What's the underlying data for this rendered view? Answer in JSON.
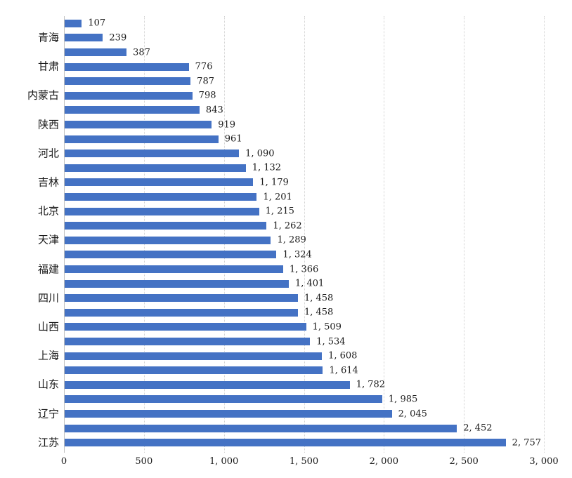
{
  "chart_data": {
    "type": "bar",
    "orientation": "horizontal",
    "title": "",
    "xlabel": "",
    "ylabel": "",
    "legend": null,
    "bar_color": "#4472C4",
    "gridline_color": "#d2d2d2",
    "axis_line_color": "#bfbfbf",
    "text_color": "#1a1a1a",
    "x_axis": {
      "min": 0,
      "max": 3000,
      "tick_interval": 500,
      "tick_labels": [
        "0",
        "500",
        "1,000",
        "1,500",
        "2,000",
        "2,500",
        "3,000"
      ],
      "grid": "dotted-vertical"
    },
    "category_label_note": "axis labels shown only on every second bar",
    "bars": [
      {
        "category": "",
        "value": 107
      },
      {
        "category": "青海",
        "value": 239
      },
      {
        "category": "",
        "value": 387
      },
      {
        "category": "甘肃",
        "value": 776
      },
      {
        "category": "",
        "value": 787
      },
      {
        "category": "内蒙古",
        "value": 798
      },
      {
        "category": "",
        "value": 843
      },
      {
        "category": "陕西",
        "value": 919
      },
      {
        "category": "",
        "value": 961
      },
      {
        "category": "河北",
        "value": 1090
      },
      {
        "category": "",
        "value": 1132
      },
      {
        "category": "吉林",
        "value": 1179
      },
      {
        "category": "",
        "value": 1201
      },
      {
        "category": "北京",
        "value": 1215
      },
      {
        "category": "",
        "value": 1262
      },
      {
        "category": "天津",
        "value": 1289
      },
      {
        "category": "",
        "value": 1324
      },
      {
        "category": "福建",
        "value": 1366
      },
      {
        "category": "",
        "value": 1401
      },
      {
        "category": "四川",
        "value": 1458
      },
      {
        "category": "",
        "value": 1458
      },
      {
        "category": "山西",
        "value": 1509
      },
      {
        "category": "",
        "value": 1534
      },
      {
        "category": "上海",
        "value": 1608
      },
      {
        "category": "",
        "value": 1614
      },
      {
        "category": "山东",
        "value": 1782
      },
      {
        "category": "",
        "value": 1985
      },
      {
        "category": "辽宁",
        "value": 2045
      },
      {
        "category": "",
        "value": 2452
      },
      {
        "category": "江苏",
        "value": 2757
      }
    ]
  }
}
